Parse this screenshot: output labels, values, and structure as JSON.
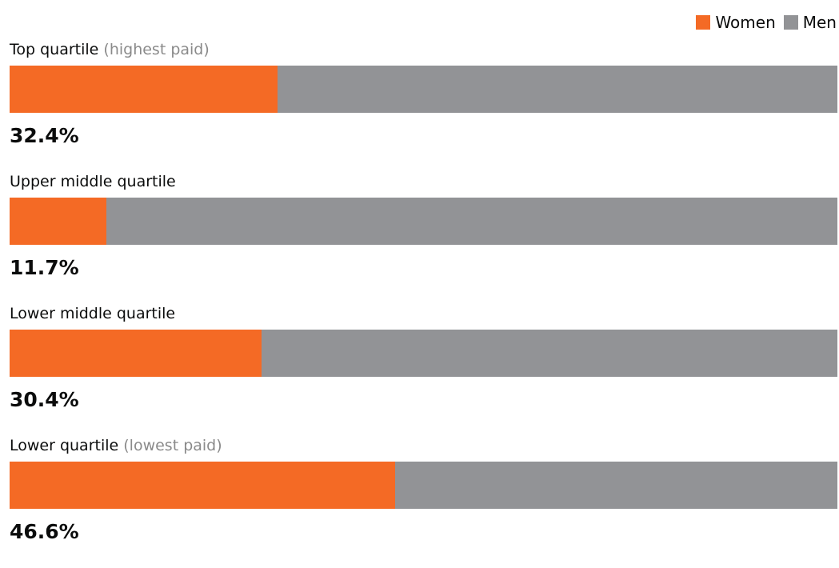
{
  "legend": [
    {
      "label": "Women",
      "color": "#f46a25"
    },
    {
      "label": "Men",
      "color": "#929396"
    }
  ],
  "chart_data": {
    "type": "bar",
    "orientation": "horizontal",
    "stacked": true,
    "categories": [
      {
        "label": "Top quartile",
        "note": "(highest paid)"
      },
      {
        "label": "Upper middle quartile",
        "note": ""
      },
      {
        "label": "Lower middle quartile",
        "note": ""
      },
      {
        "label": "Lower quartile",
        "note": "(lowest paid)"
      }
    ],
    "series": [
      {
        "name": "Women",
        "color": "#f46a25",
        "values": [
          32.4,
          11.7,
          30.4,
          46.6
        ]
      },
      {
        "name": "Men",
        "color": "#929396",
        "values": [
          67.6,
          88.3,
          69.6,
          53.4
        ]
      }
    ],
    "value_labels": [
      "32.4%",
      "11.7%",
      "30.4%",
      "46.6%"
    ],
    "xlim": [
      0,
      100
    ],
    "legend_position": "top-right",
    "grid": false
  }
}
